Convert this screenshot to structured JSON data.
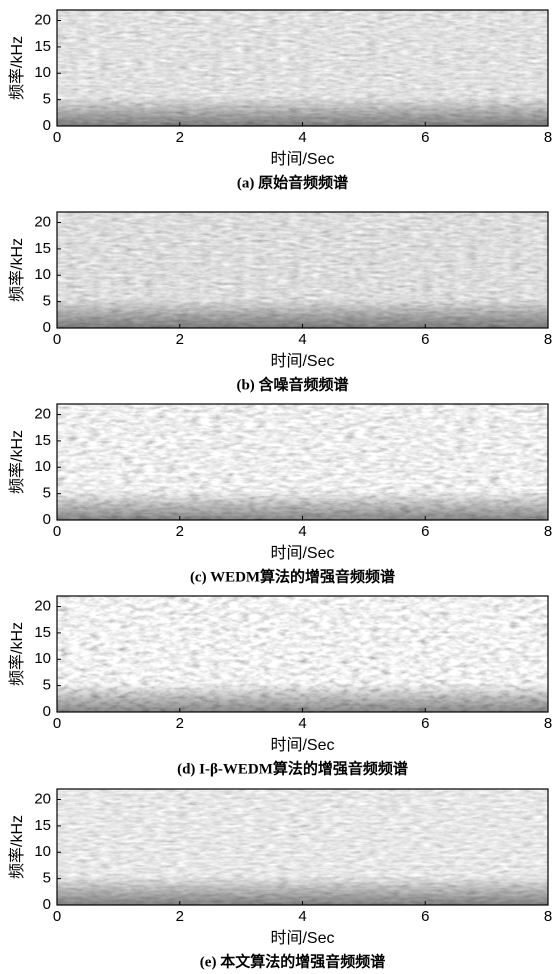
{
  "chart_data": [
    {
      "type": "spectrogram",
      "caption": "(a) 原始音频频谱",
      "xlabel": "时间/Sec",
      "ylabel": "频率/kHz",
      "xlim": [
        0,
        8
      ],
      "xticks": [
        0,
        2,
        4,
        6,
        8
      ],
      "ylim": [
        0,
        22
      ],
      "yticks": [
        0,
        5,
        10,
        15,
        20
      ]
    },
    {
      "type": "spectrogram",
      "caption": "(b) 含噪音频频谱",
      "xlabel": "时间/Sec",
      "ylabel": "频率/kHz",
      "xlim": [
        0,
        8
      ],
      "xticks": [
        0,
        2,
        4,
        6,
        8
      ],
      "ylim": [
        0,
        22
      ],
      "yticks": [
        0,
        5,
        10,
        15,
        20
      ]
    },
    {
      "type": "spectrogram",
      "caption": "(c) WEDM算法的增强音频频谱",
      "xlabel": "时间/Sec",
      "ylabel": "频率/kHz",
      "xlim": [
        0,
        8
      ],
      "xticks": [
        0,
        2,
        4,
        6,
        8
      ],
      "ylim": [
        0,
        22
      ],
      "yticks": [
        0,
        5,
        10,
        15,
        20
      ]
    },
    {
      "type": "spectrogram",
      "caption": "(d) I-β-WEDM算法的增强音频频谱",
      "xlabel": "时间/Sec",
      "ylabel": "频率/kHz",
      "xlim": [
        0,
        8
      ],
      "xticks": [
        0,
        2,
        4,
        6,
        8
      ],
      "ylim": [
        0,
        22
      ],
      "yticks": [
        0,
        5,
        10,
        15,
        20
      ]
    },
    {
      "type": "spectrogram",
      "caption": "(e) 本文算法的增强音频频谱",
      "xlabel": "时间/Sec",
      "ylabel": "频率/kHz",
      "xlim": [
        0,
        8
      ],
      "xticks": [
        0,
        2,
        4,
        6,
        8
      ],
      "ylim": [
        0,
        22
      ],
      "yticks": [
        0,
        5,
        10,
        15,
        20
      ]
    }
  ]
}
